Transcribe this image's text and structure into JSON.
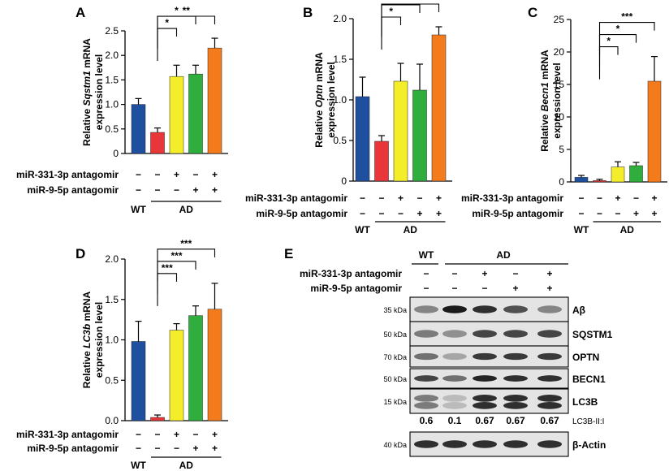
{
  "colors": {
    "wt": "#1f4f9f",
    "ad": "#e8363a",
    "mir331": "#f4ee2a",
    "mir9": "#2fae3e",
    "both": "#f47b1c",
    "axis": "#000000"
  },
  "row_labels": {
    "mir331": "miR-331-3p antagomir",
    "mir9": "miR-9-5p antagomir",
    "wt": "WT",
    "ad": "AD"
  },
  "treatment_marks": {
    "mir331": [
      "−",
      "−",
      "+",
      "−",
      "+"
    ],
    "mir9": [
      "−",
      "−",
      "−",
      "+",
      "+"
    ]
  },
  "chart_data": [
    {
      "panel": "A",
      "type": "bar",
      "categories": [
        "WT",
        "AD",
        "AD + miR-331-3p antagomir",
        "AD + miR-9-5p antagomir",
        "AD + both antagomirs"
      ],
      "values": [
        1.0,
        0.43,
        1.57,
        1.62,
        2.15
      ],
      "errors": [
        0.12,
        0.09,
        0.23,
        0.18,
        0.2
      ],
      "ylabel_prefix": "Relative ",
      "ylabel_gene": "Sqstm1",
      "ylabel_suffix": " mRNA",
      "ylabel2": "expression level",
      "ylim": [
        0,
        2.5
      ],
      "yticks": [
        0,
        0.5,
        1.0,
        1.5,
        2.0,
        2.5
      ],
      "ytick_labels": [
        "0",
        "0.5",
        "1.0",
        "1.5",
        "2.0",
        "2.5"
      ],
      "significance": [
        {
          "from": 1,
          "to": 2,
          "label": "*"
        },
        {
          "from": 1,
          "to": 3,
          "label": "*"
        },
        {
          "from": 1,
          "to": 4,
          "label": "**"
        }
      ]
    },
    {
      "panel": "B",
      "type": "bar",
      "categories": [
        "WT",
        "AD",
        "AD + miR-331-3p antagomir",
        "AD + miR-9-5p antagomir",
        "AD + both antagomirs"
      ],
      "values": [
        1.04,
        0.49,
        1.23,
        1.12,
        1.8
      ],
      "errors": [
        0.24,
        0.07,
        0.22,
        0.32,
        0.1
      ],
      "ylabel_prefix": "Relative ",
      "ylabel_gene": "Optn",
      "ylabel_suffix": " mRNA",
      "ylabel2": "expression level",
      "ylim": [
        0,
        2.0
      ],
      "yticks": [
        0,
        0.5,
        1.0,
        1.5,
        2.0
      ],
      "ytick_labels": [
        "0",
        "0.5",
        "1.0",
        "1.5",
        "2.0"
      ],
      "significance": [
        {
          "from": 1,
          "to": 2,
          "label": "*"
        },
        {
          "from": 1,
          "to": 3,
          "label": "*"
        },
        {
          "from": 1,
          "to": 4,
          "label": "***"
        }
      ]
    },
    {
      "panel": "C",
      "type": "bar",
      "categories": [
        "WT",
        "AD",
        "AD + miR-331-3p antagomir",
        "AD + miR-9-5p antagomir",
        "AD + both antagomirs"
      ],
      "values": [
        0.7,
        0.2,
        2.3,
        2.5,
        15.5
      ],
      "errors": [
        0.3,
        0.2,
        0.8,
        0.5,
        3.8
      ],
      "ylabel_prefix": "Relative ",
      "ylabel_gene": "Becn1",
      "ylabel_suffix": " mRNA",
      "ylabel2": "expression level",
      "ylim": [
        0,
        25
      ],
      "yticks": [
        0,
        5,
        10,
        15,
        20,
        25
      ],
      "ytick_labels": [
        "0",
        "5",
        "10",
        "15",
        "20",
        "25"
      ],
      "significance": [
        {
          "from": 1,
          "to": 2,
          "label": "*"
        },
        {
          "from": 1,
          "to": 3,
          "label": "*"
        },
        {
          "from": 1,
          "to": 4,
          "label": "***"
        }
      ]
    },
    {
      "panel": "D",
      "type": "bar",
      "categories": [
        "WT",
        "AD",
        "AD + miR-331-3p antagomir",
        "AD + miR-9-5p antagomir",
        "AD + both antagomirs"
      ],
      "values": [
        0.98,
        0.04,
        1.12,
        1.3,
        1.38
      ],
      "errors": [
        0.25,
        0.03,
        0.08,
        0.12,
        0.32
      ],
      "ylabel_prefix": "Relative ",
      "ylabel_gene": "LC3b",
      "ylabel_suffix": " mRNA",
      "ylabel2": "expression level",
      "ylim": [
        0,
        2.0
      ],
      "yticks": [
        0,
        0.5,
        1.0,
        1.5,
        2.0
      ],
      "ytick_labels": [
        "0.0",
        "0.5",
        "1.0",
        "1.5",
        "2.0"
      ],
      "significance": [
        {
          "from": 1,
          "to": 2,
          "label": "***"
        },
        {
          "from": 1,
          "to": 3,
          "label": "***"
        },
        {
          "from": 1,
          "to": 4,
          "label": "***"
        }
      ]
    }
  ],
  "western_blot": {
    "panel": "E",
    "group_wt": "WT",
    "group_ad": "AD",
    "row_mir331": "miR-331-3p antagomir",
    "row_mir9": "miR-9-5p antagomir",
    "marks_mir331": [
      "−",
      "−",
      "+",
      "−",
      "+"
    ],
    "marks_mir9": [
      "−",
      "−",
      "−",
      "+",
      "+"
    ],
    "ratio_label": "LC3B-II:I",
    "ratios": [
      "0.6",
      "0.1",
      "0.67",
      "0.67",
      "0.67"
    ],
    "blots": [
      {
        "name": "Aβ",
        "kda": "35 kDa",
        "intensities": [
          0.45,
          0.95,
          0.85,
          0.7,
          0.45
        ]
      },
      {
        "name": "SQSTM1",
        "kda": "50 kDa",
        "intensities": [
          0.5,
          0.4,
          0.75,
          0.75,
          0.75
        ]
      },
      {
        "name": "OPTN",
        "kda": "70 kDa",
        "intensities": [
          0.55,
          0.3,
          0.8,
          0.8,
          0.8
        ]
      },
      {
        "name": "BECN1",
        "kda": "50 kDa",
        "intensities": [
          0.75,
          0.55,
          0.9,
          0.85,
          0.85
        ]
      },
      {
        "name": "LC3B",
        "kda": "15 kDa",
        "intensities": [
          0.5,
          0.2,
          0.85,
          0.85,
          0.85
        ]
      },
      {
        "name": "β-Actin",
        "kda": "40 kDa",
        "intensities": [
          0.85,
          0.85,
          0.85,
          0.85,
          0.85
        ]
      }
    ]
  }
}
